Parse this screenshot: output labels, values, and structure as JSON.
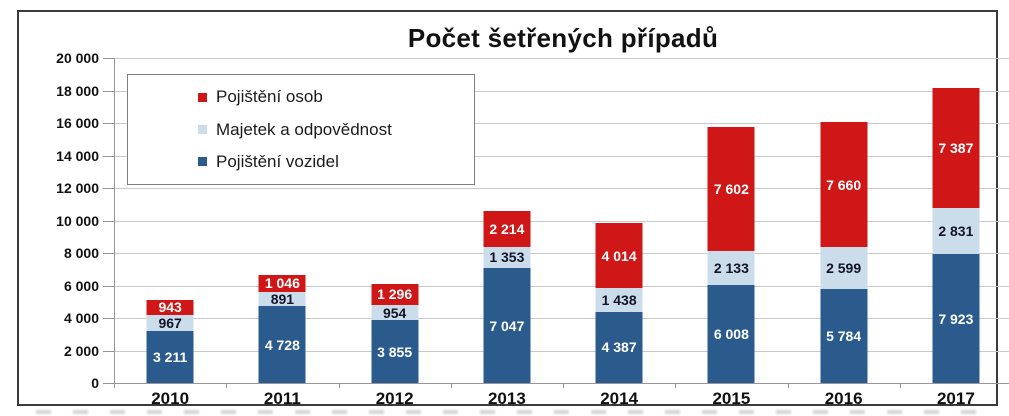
{
  "chart_data": {
    "type": "bar",
    "stacked": true,
    "title": "Počet šetřených případů",
    "categories": [
      "2010",
      "2011",
      "2012",
      "2013",
      "2014",
      "2015",
      "2016",
      "2017"
    ],
    "series": [
      {
        "name": "Pojištění osob",
        "color": "#d01717",
        "label_color": "#ffffff",
        "values": [
          943,
          1046,
          1296,
          2214,
          4014,
          7602,
          7660,
          7387
        ]
      },
      {
        "name": "Majetek a odpovědnost",
        "color": "#cbdcea",
        "label_color": "#141428",
        "values": [
          967,
          891,
          954,
          1353,
          1438,
          2133,
          2599,
          2831
        ]
      },
      {
        "name": "Pojištění vozidel",
        "color": "#2b5b8d",
        "label_color": "#ffffff",
        "values": [
          3211,
          4728,
          3855,
          7047,
          4387,
          6008,
          5784,
          7923
        ]
      }
    ],
    "ylim": [
      0,
      20000
    ],
    "ytick_step": 2000,
    "ytick_labels": [
      "0",
      "2 000",
      "4 000",
      "6 000",
      "8 000",
      "10 000",
      "12 000",
      "14 000",
      "16 000",
      "18 000",
      "20 000"
    ],
    "xlabel": "",
    "ylabel": "",
    "grid": true,
    "legend_position": "upper-left",
    "number_format": "space-thousands"
  },
  "colors": {
    "frame_border": "#3a3a3a",
    "gridline": "#c9c9c9",
    "axis": "#979797",
    "legend_border": "#7f7f7f",
    "text": "#111111"
  }
}
